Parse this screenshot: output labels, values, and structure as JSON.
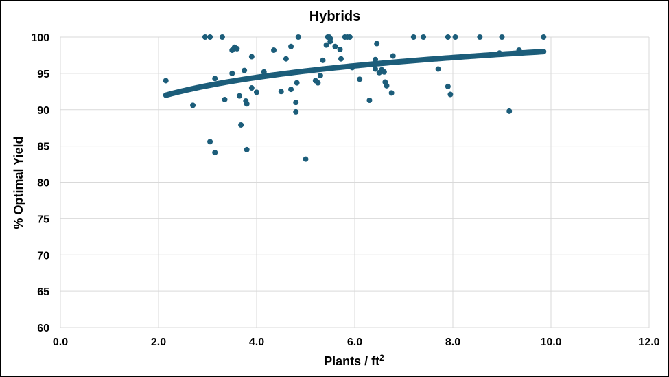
{
  "chart_data": {
    "type": "scatter",
    "title": "Hybrids",
    "xlabel": "Plants / ft",
    "xlabel_sup": "2",
    "ylabel": "% Optimal Yield",
    "xlim": [
      0,
      12
    ],
    "ylim": [
      60,
      100
    ],
    "x_ticks": [
      "0.0",
      "2.0",
      "4.0",
      "6.0",
      "8.0",
      "10.0",
      "12.0"
    ],
    "y_ticks": [
      "60",
      "65",
      "70",
      "75",
      "80",
      "85",
      "90",
      "95",
      "100"
    ],
    "grid": true,
    "legend": "none",
    "marker_color": "#1c5d7a",
    "points": [
      [
        2.15,
        94.0
      ],
      [
        2.7,
        90.6
      ],
      [
        2.95,
        100
      ],
      [
        3.05,
        100
      ],
      [
        3.3,
        100
      ],
      [
        3.05,
        85.6
      ],
      [
        3.15,
        84.1
      ],
      [
        3.15,
        94.3
      ],
      [
        3.35,
        91.4
      ],
      [
        3.5,
        98.2
      ],
      [
        3.55,
        98.6
      ],
      [
        3.6,
        98.4
      ],
      [
        3.5,
        95.0
      ],
      [
        3.65,
        91.9
      ],
      [
        3.68,
        87.9
      ],
      [
        3.75,
        95.4
      ],
      [
        3.78,
        91.2
      ],
      [
        3.8,
        90.8
      ],
      [
        3.8,
        84.5
      ],
      [
        3.9,
        97.3
      ],
      [
        3.9,
        93.0
      ],
      [
        4.0,
        92.4
      ],
      [
        4.15,
        95.2
      ],
      [
        4.35,
        98.2
      ],
      [
        4.5,
        92.5
      ],
      [
        4.6,
        97.0
      ],
      [
        4.7,
        98.7
      ],
      [
        4.7,
        92.8
      ],
      [
        4.8,
        91.0
      ],
      [
        4.8,
        89.7
      ],
      [
        4.82,
        93.7
      ],
      [
        4.85,
        100
      ],
      [
        5.0,
        83.2
      ],
      [
        5.2,
        94.0
      ],
      [
        5.25,
        93.7
      ],
      [
        5.3,
        94.7
      ],
      [
        5.35,
        96.8
      ],
      [
        5.42,
        98.9
      ],
      [
        5.45,
        100
      ],
      [
        5.48,
        100
      ],
      [
        5.5,
        99.8
      ],
      [
        5.5,
        99.4
      ],
      [
        5.6,
        98.7
      ],
      [
        5.7,
        98.3
      ],
      [
        5.72,
        97.0
      ],
      [
        5.8,
        100
      ],
      [
        5.85,
        100
      ],
      [
        5.9,
        100
      ],
      [
        5.95,
        95.8
      ],
      [
        6.1,
        94.2
      ],
      [
        6.3,
        91.3
      ],
      [
        6.4,
        96.2
      ],
      [
        6.42,
        95.6
      ],
      [
        6.42,
        96.9
      ],
      [
        6.45,
        99.1
      ],
      [
        6.5,
        95.1
      ],
      [
        6.55,
        95.5
      ],
      [
        6.6,
        95.2
      ],
      [
        6.62,
        93.8
      ],
      [
        6.65,
        93.3
      ],
      [
        6.75,
        92.3
      ],
      [
        6.78,
        97.4
      ],
      [
        7.2,
        100
      ],
      [
        7.4,
        100
      ],
      [
        7.7,
        95.6
      ],
      [
        7.9,
        100
      ],
      [
        7.9,
        93.2
      ],
      [
        7.95,
        92.1
      ],
      [
        8.05,
        100
      ],
      [
        8.55,
        100
      ],
      [
        9.0,
        100
      ],
      [
        9.15,
        89.8
      ],
      [
        9.35,
        98.2
      ],
      [
        9.85,
        100
      ],
      [
        8.95,
        97.8
      ]
    ],
    "trend_range": [
      2.15,
      9.85
    ],
    "trend_start": 92.0,
    "trend_end": 98.0
  }
}
